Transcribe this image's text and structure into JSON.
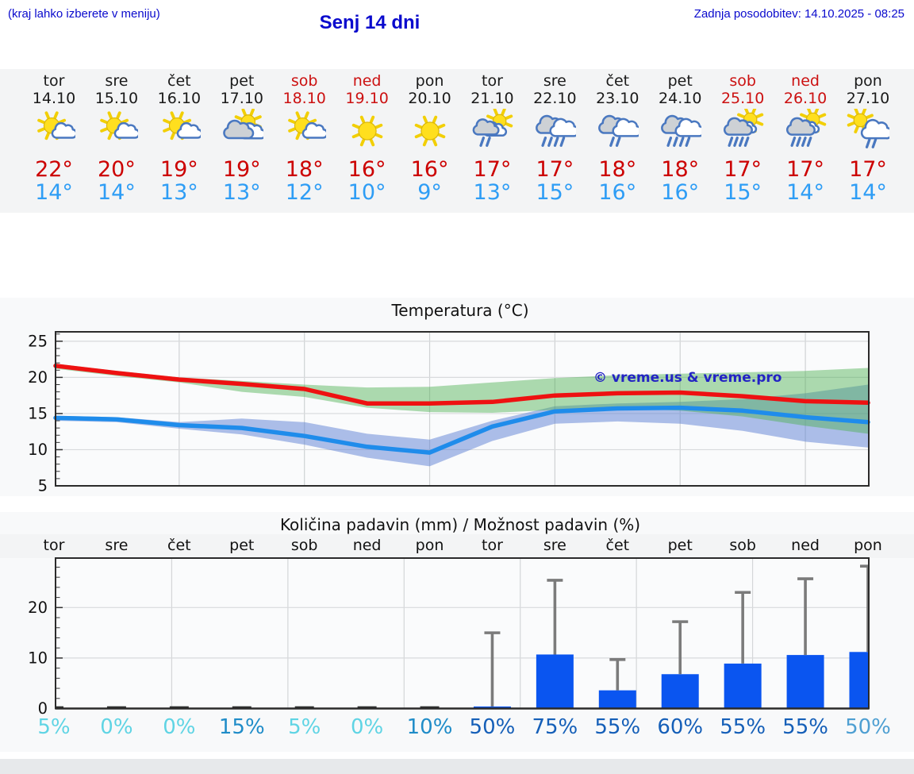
{
  "header": {
    "hint": "(kraj lahko izberete v meniju)",
    "title": "Senj 14 dni",
    "updated": "Zadnja posodobitev: 14.10.2025 - 08:25"
  },
  "colors": {
    "header_blue": "#0a0acd",
    "high_red": "#cc0000",
    "low_blue": "#2e9df5",
    "weekend_red": "#cc1111",
    "bar_blue": "#0a55f0",
    "whisker_gray": "#7b7b7b",
    "tmax_line": "#ee1111",
    "tmin_line": "#1f8ceb",
    "tmax_band": "#4caf50",
    "tmin_band": "#5b7fd4"
  },
  "days": [
    {
      "name": "tor",
      "date": "14.10",
      "weekend": false,
      "icon": "partly-sunny",
      "high": "22°",
      "low": "14°"
    },
    {
      "name": "sre",
      "date": "15.10",
      "weekend": false,
      "icon": "partly-sunny",
      "high": "20°",
      "low": "14°"
    },
    {
      "name": "čet",
      "date": "16.10",
      "weekend": false,
      "icon": "partly-sunny",
      "high": "19°",
      "low": "13°"
    },
    {
      "name": "pet",
      "date": "17.10",
      "weekend": false,
      "icon": "mostly-cloudy-sun",
      "high": "19°",
      "low": "13°"
    },
    {
      "name": "sob",
      "date": "18.10",
      "weekend": true,
      "icon": "partly-sunny",
      "high": "18°",
      "low": "12°"
    },
    {
      "name": "ned",
      "date": "19.10",
      "weekend": true,
      "icon": "sunny",
      "high": "16°",
      "low": "10°"
    },
    {
      "name": "pon",
      "date": "20.10",
      "weekend": false,
      "icon": "sunny",
      "high": "16°",
      "low": "9°"
    },
    {
      "name": "tor",
      "date": "21.10",
      "weekend": false,
      "icon": "sun-shower-light",
      "high": "17°",
      "low": "13°"
    },
    {
      "name": "sre",
      "date": "22.10",
      "weekend": false,
      "icon": "rain",
      "high": "17°",
      "low": "15°"
    },
    {
      "name": "čet",
      "date": "23.10",
      "weekend": false,
      "icon": "rain-light",
      "high": "18°",
      "low": "16°"
    },
    {
      "name": "pet",
      "date": "24.10",
      "weekend": false,
      "icon": "rain",
      "high": "18°",
      "low": "16°"
    },
    {
      "name": "sob",
      "date": "25.10",
      "weekend": true,
      "icon": "sun-shower",
      "high": "17°",
      "low": "15°"
    },
    {
      "name": "ned",
      "date": "26.10",
      "weekend": true,
      "icon": "sun-shower",
      "high": "17°",
      "low": "14°"
    },
    {
      "name": "pon",
      "date": "27.10",
      "weekend": false,
      "icon": "sun-rain-cloud",
      "high": "17°",
      "low": "14°"
    }
  ],
  "chart_data": [
    {
      "type": "line",
      "title": "Temperatura (°C)",
      "watermark": "© vreme.us & vreme.pro",
      "x_labels": [
        "tor",
        "sre",
        "čet",
        "pet",
        "sob",
        "ned",
        "pon",
        "tor",
        "sre",
        "čet",
        "pet",
        "sob",
        "ned",
        "pon"
      ],
      "ylim": [
        5,
        26.3
      ],
      "yticks": [
        5,
        10,
        15,
        20,
        25
      ],
      "grid": true,
      "series": [
        {
          "name": "max-temperature",
          "color": "#ee1111",
          "values": [
            21.6,
            20.6,
            19.7,
            19.1,
            18.4,
            16.4,
            16.4,
            16.6,
            17.5,
            17.8,
            17.9,
            17.4,
            16.7,
            16.5
          ]
        },
        {
          "name": "min-temperature",
          "color": "#1f8ceb",
          "values": [
            14.4,
            14.2,
            13.4,
            13.0,
            11.9,
            10.4,
            9.6,
            13.2,
            15.3,
            15.7,
            15.8,
            15.4,
            14.5,
            13.8
          ]
        }
      ],
      "bands": [
        {
          "name": "min-temperature-range",
          "color": "#5b7fd4",
          "opacity": 0.5,
          "upper": [
            14.7,
            14.5,
            13.8,
            14.3,
            13.8,
            12.2,
            11.4,
            14.0,
            16.0,
            16.4,
            16.6,
            17.0,
            17.8,
            19.0
          ],
          "lower": [
            14.0,
            13.8,
            12.9,
            12.1,
            10.7,
            8.9,
            7.7,
            11.2,
            13.6,
            13.9,
            13.6,
            12.6,
            11.1,
            10.3
          ]
        },
        {
          "name": "max-temperature-range",
          "color": "#4caf50",
          "opacity": 0.45,
          "upper": [
            21.9,
            20.9,
            20.0,
            19.5,
            19.0,
            18.6,
            18.7,
            19.3,
            19.9,
            20.3,
            20.5,
            20.7,
            20.9,
            21.3
          ],
          "lower": [
            21.2,
            20.2,
            19.3,
            18.0,
            17.3,
            15.8,
            15.2,
            15.1,
            15.5,
            15.7,
            15.4,
            14.6,
            13.3,
            12.2
          ]
        }
      ]
    },
    {
      "type": "bar",
      "title": "Količina padavin (mm) / Možnost padavin (%)",
      "categories": [
        "tor",
        "sre",
        "čet",
        "pet",
        "sob",
        "ned",
        "pon",
        "tor",
        "sre",
        "čet",
        "pet",
        "sob",
        "ned",
        "pon"
      ],
      "values": [
        0,
        0,
        0,
        0,
        0,
        0,
        0,
        0.4,
        10.7,
        3.6,
        6.8,
        8.9,
        10.6,
        11.2
      ],
      "whisker_max": [
        0,
        0,
        0,
        0,
        0,
        0,
        0,
        15.0,
        25.4,
        9.7,
        17.2,
        23.0,
        25.7,
        28.2
      ],
      "ylim": [
        0,
        29.8
      ],
      "yticks": [
        0,
        10,
        20
      ],
      "probabilities": [
        "5%",
        "0%",
        "0%",
        "15%",
        "5%",
        "0%",
        "10%",
        "50%",
        "75%",
        "55%",
        "60%",
        "55%",
        "55%",
        "50%"
      ],
      "prob_colors": [
        "#5fd4e4",
        "#5fd4e4",
        "#5fd4e4",
        "#1f8cc8",
        "#5fd4e4",
        "#5fd4e4",
        "#1f8cc8",
        "#155fb8",
        "#155fb8",
        "#155fb8",
        "#155fb8",
        "#155fb8",
        "#155fb8",
        "#4e9fd2"
      ]
    }
  ]
}
